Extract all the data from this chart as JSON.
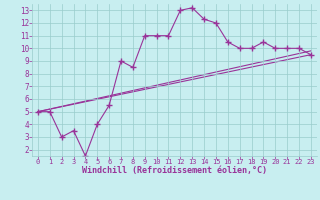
{
  "line1_x": [
    0,
    1,
    2,
    3,
    4,
    5,
    6,
    7,
    8,
    9,
    10,
    11,
    12,
    13,
    14,
    15,
    16,
    17,
    18,
    19,
    20,
    21,
    22,
    23
  ],
  "line1_y": [
    5.0,
    5.0,
    3.0,
    3.5,
    1.5,
    4.0,
    5.5,
    9.0,
    8.5,
    11.0,
    11.0,
    11.0,
    13.0,
    13.2,
    12.3,
    12.0,
    10.5,
    10.0,
    10.0,
    10.5,
    10.0,
    10.0,
    10.0,
    9.5
  ],
  "line2_x": [
    0,
    23
  ],
  "line2_y": [
    5.0,
    9.5
  ],
  "line3_x": [
    0,
    23
  ],
  "line3_y": [
    5.0,
    9.5
  ],
  "color": "#993399",
  "bg_color": "#c8eef0",
  "grid_color": "#99cccc",
  "xlabel": "Windchill (Refroidissement éolien,°C)",
  "xlim": [
    -0.5,
    23.5
  ],
  "ylim": [
    1.5,
    13.5
  ],
  "yticks": [
    2,
    3,
    4,
    5,
    6,
    7,
    8,
    9,
    10,
    11,
    12,
    13
  ],
  "xticks": [
    0,
    1,
    2,
    3,
    4,
    5,
    6,
    7,
    8,
    9,
    10,
    11,
    12,
    13,
    14,
    15,
    16,
    17,
    18,
    19,
    20,
    21,
    22,
    23
  ],
  "marker": "+",
  "markersize": 4,
  "linewidth": 0.8,
  "figwidth": 3.2,
  "figheight": 2.0,
  "dpi": 100
}
